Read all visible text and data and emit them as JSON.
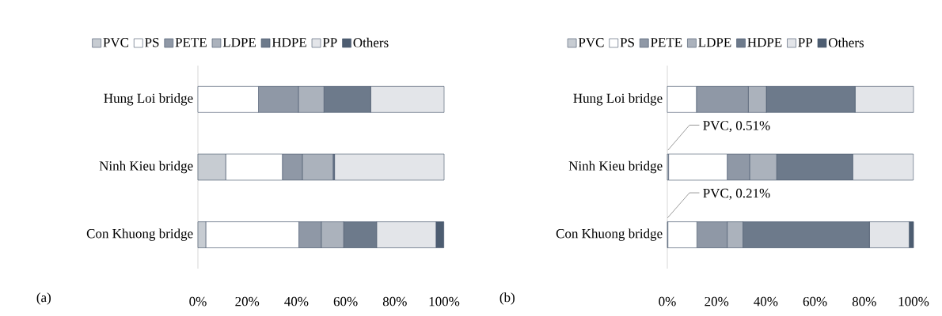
{
  "chart_data": [
    {
      "type": "bar",
      "orientation": "horizontal",
      "stacked": true,
      "legend": "top",
      "categories": [
        "Hung Loi bridge",
        "Ninh Kieu bridge",
        "Con Khuong bridge"
      ],
      "series": [
        {
          "name": "PVC",
          "color": "#44546a",
          "values": [
            0,
            11.3,
            3.2
          ]
        },
        {
          "name": "PS",
          "color": "#44546a",
          "values": [
            24.6,
            23.0,
            37.8
          ]
        },
        {
          "name": "PETE",
          "color": "#44546a",
          "values": [
            16.2,
            8.1,
            9.1
          ]
        },
        {
          "name": "LDPE",
          "color": "#44546a",
          "values": [
            10.4,
            12.5,
            9.1
          ]
        },
        {
          "name": "HDPE",
          "color": "#44546a",
          "values": [
            19.0,
            0.6,
            13.4
          ]
        },
        {
          "name": "PP",
          "color": "#44546a",
          "values": [
            29.8,
            44.5,
            24.1
          ]
        },
        {
          "name": "Others",
          "color": "#44546a",
          "values": [
            0,
            0,
            3.2
          ]
        }
      ],
      "xlim": [
        0,
        100
      ],
      "xticks": [
        {
          "value": 0,
          "label": "0%"
        },
        {
          "value": 20,
          "label": "20%"
        },
        {
          "value": 40,
          "label": "40%"
        },
        {
          "value": 60,
          "label": "60%"
        },
        {
          "value": 80,
          "label": "80%"
        },
        {
          "value": 100,
          "label": "100%"
        }
      ],
      "annotations": [
        "(a)"
      ]
    },
    {
      "type": "bar",
      "orientation": "horizontal",
      "stacked": true,
      "legend": "top",
      "categories": [
        "Hung Loi bridge",
        "Ninh Kieu bridge",
        "Con Khuong bridge"
      ],
      "series": [
        {
          "name": "PVC",
          "color": "#44546a",
          "values": [
            0,
            0.51,
            0.21
          ],
          "value_labels": [
            null,
            "PVC, 0.51%",
            "PVC, 0.21%"
          ]
        },
        {
          "name": "PS",
          "color": "#44546a",
          "values": [
            11.8,
            23.8,
            11.8
          ]
        },
        {
          "name": "PETE",
          "color": "#44546a",
          "values": [
            21.1,
            9.1,
            12.3
          ]
        },
        {
          "name": "LDPE",
          "color": "#44546a",
          "values": [
            7.3,
            11.0,
            6.4
          ]
        },
        {
          "name": "HDPE",
          "color": "#44546a",
          "values": [
            36.1,
            30.9,
            51.4
          ]
        },
        {
          "name": "PP",
          "color": "#44546a",
          "values": [
            23.7,
            24.6,
            16.1
          ]
        },
        {
          "name": "Others",
          "color": "#44546a",
          "values": [
            0,
            0,
            1.8
          ]
        }
      ],
      "xlim": [
        0,
        100
      ],
      "xticks": [
        {
          "value": 0,
          "label": "0%"
        },
        {
          "value": 20,
          "label": "20%"
        },
        {
          "value": 40,
          "label": "40%"
        },
        {
          "value": 60,
          "label": "60%"
        },
        {
          "value": 80,
          "label": "80%"
        },
        {
          "value": 100,
          "label": "100%"
        }
      ],
      "annotations": [
        "(b)"
      ]
    }
  ]
}
